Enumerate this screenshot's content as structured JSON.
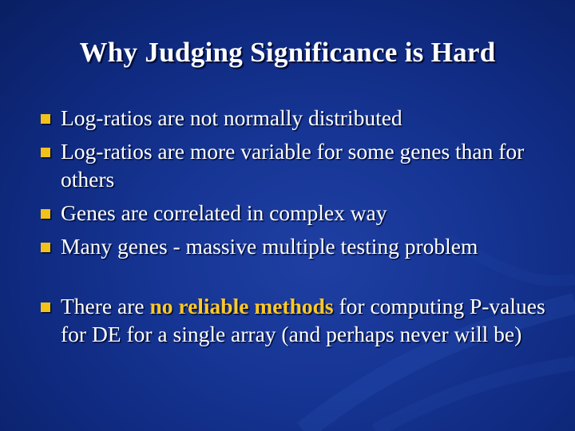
{
  "slide": {
    "title": "Why Judging Significance is Hard",
    "bullets": [
      {
        "text": "Log-ratios are not normally distributed"
      },
      {
        "text": "Log-ratios are more variable for some genes than for others"
      },
      {
        "text": "Genes are correlated in complex way"
      },
      {
        "text": "Many genes - massive multiple testing problem"
      }
    ],
    "last_bullet": {
      "before": "There are ",
      "highlight": "no reliable methods",
      "after": " for computing P-values for DE for a single array (and perhaps never will be)"
    }
  },
  "colors": {
    "background": "#163594",
    "text": "#ffffff",
    "bullet_marker": "#f2c21b",
    "highlight": "#ffc926"
  },
  "icons": {
    "bullet_marker": "square-bullet-icon"
  }
}
